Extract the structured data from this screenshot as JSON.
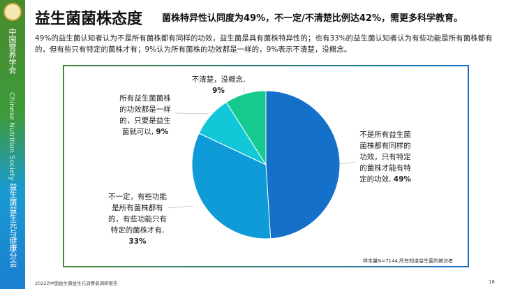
{
  "sidebar": {
    "org_cn": "中国营养学会",
    "org_en": "Chinese Nutrition Society",
    "branch": "益生菌益生元与健康分会"
  },
  "header": {
    "title": "益生菌菌株态度",
    "subtitle": "菌株特异性认同度为49%，不一定/不清楚比例达42%，需更多科学教育。"
  },
  "description": "49%的益生菌认知者认为不是所有菌株都有同样的功效，益生菌是具有菌株特异性的；也有33%的益生菌认知者认为有些功能是所有菌株都有的，但有些只有特定的菌株才有；9%认为所有菌株的功效都是一样的，9%表示不清楚，没概念。",
  "chart_data": {
    "type": "pie",
    "slices": [
      {
        "label": "不是所有益生菌菌株都有同样的功效，只有特定的菌株才能有特定的功效",
        "pct_text": "49%",
        "value": 49,
        "color": "#1470c8"
      },
      {
        "label": "不一定，有些功能是所有菌株都有的，有些功能只有特定的菌株才有",
        "pct_text": "33%",
        "value": 33,
        "color": "#0e9bd8"
      },
      {
        "label": "所有益生菌菌株的功效都是一样的，只要是益生菌就可以",
        "pct_text": "9%",
        "value": 9,
        "color": "#12c8d8"
      },
      {
        "label": "不清楚，没概念",
        "pct_text": "9%",
        "value": 9,
        "color": "#16c98f"
      }
    ]
  },
  "note": "样本量N=7144,所有知道益生菌的被访者",
  "footer": "2022Z中国益生菌益生元消费者调研报告",
  "page_number": "18"
}
